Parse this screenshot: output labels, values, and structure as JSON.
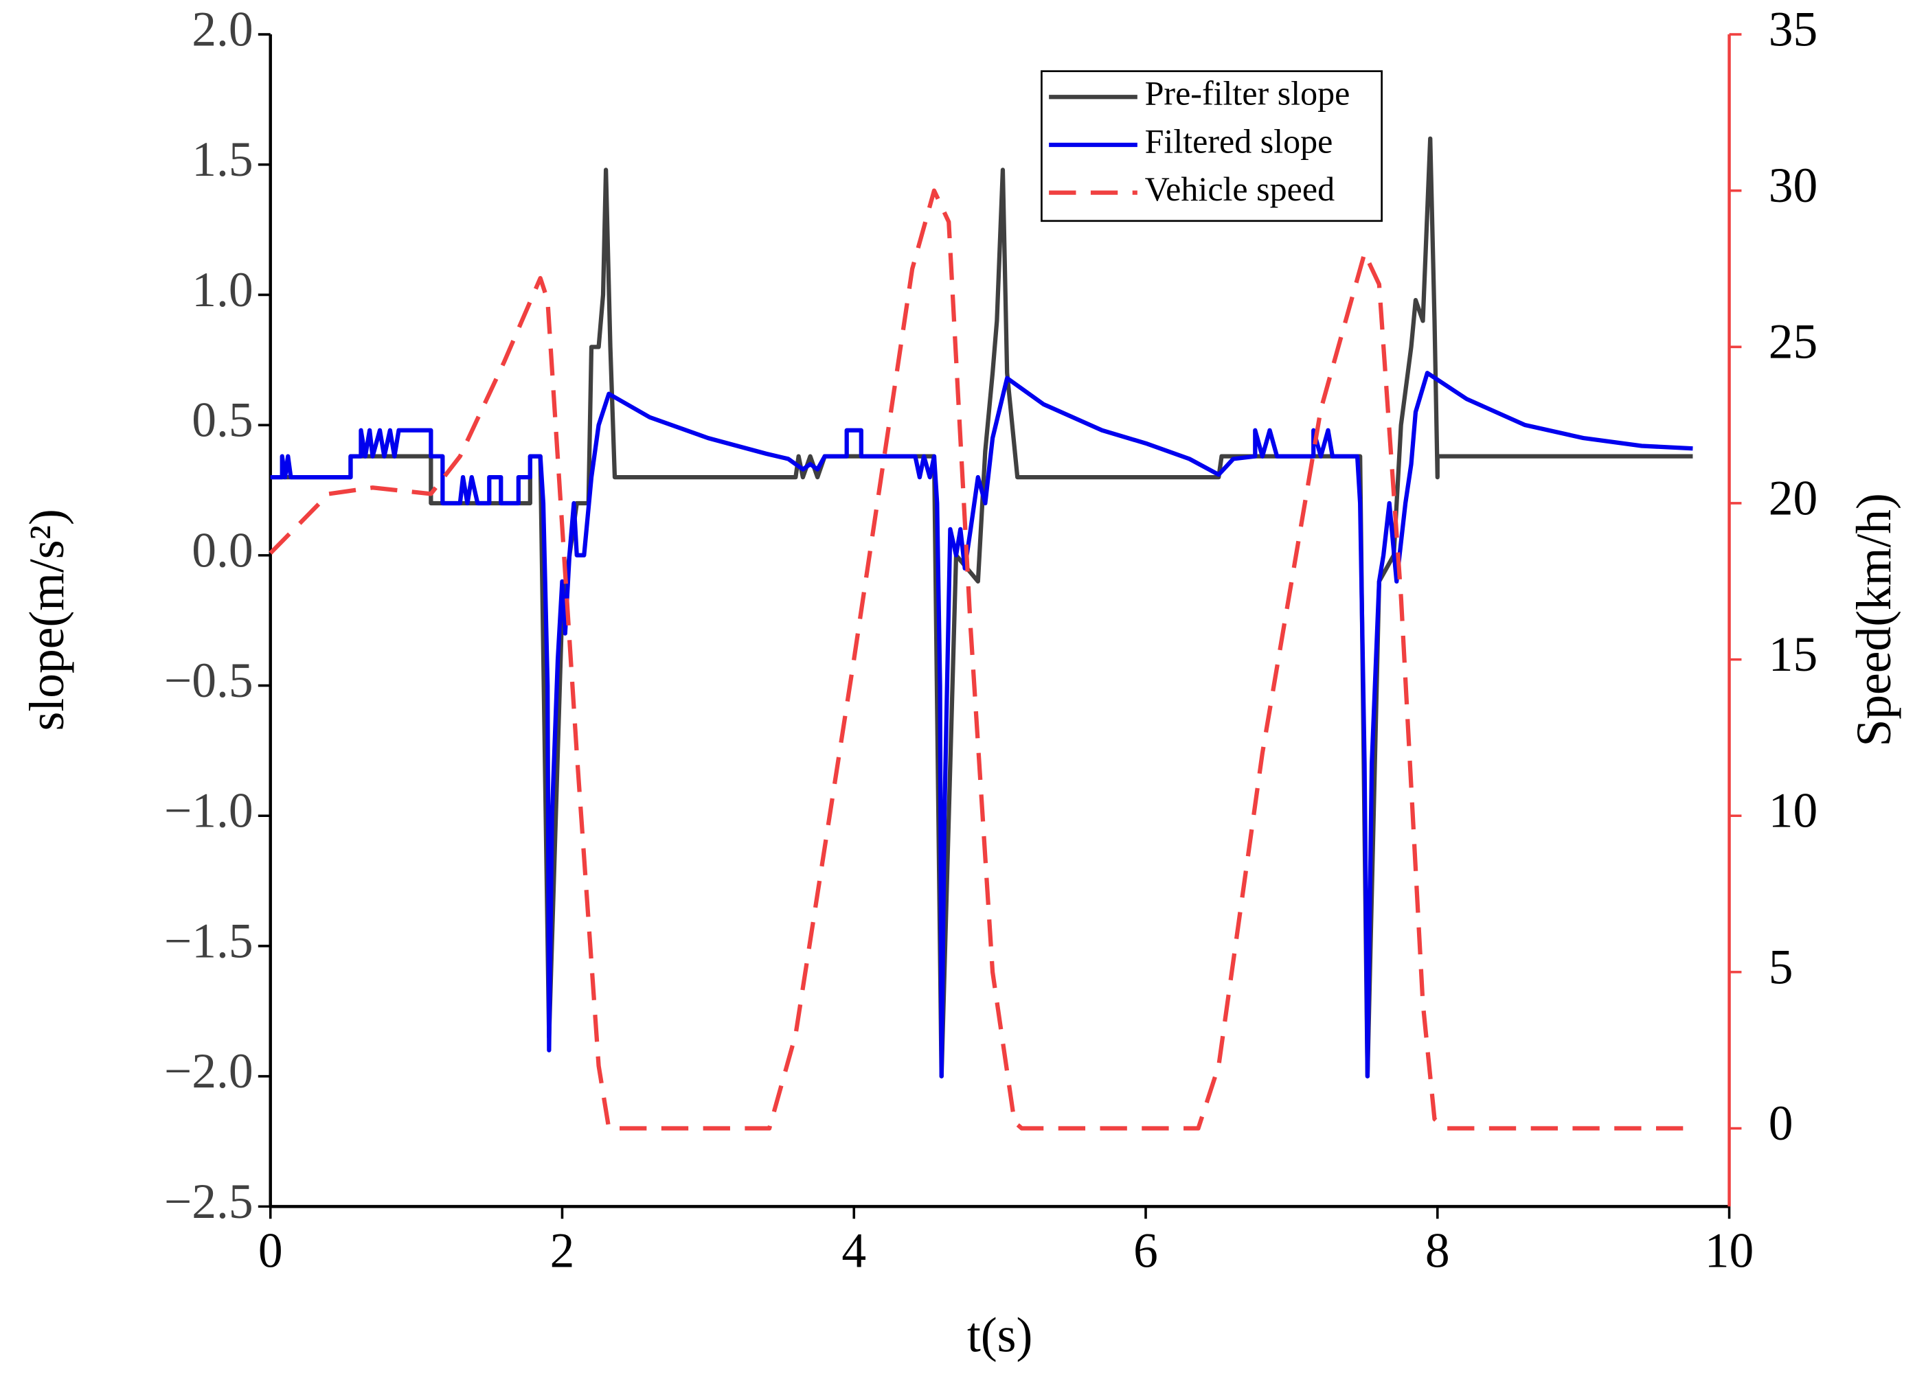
{
  "chart_data": {
    "type": "line",
    "xlabel": "t(s)",
    "ylabel": "slope(m/s²)",
    "y2label": "Speed(km/h)",
    "xlim": [
      0,
      10
    ],
    "xticks": [
      0,
      2,
      4,
      6,
      8,
      10
    ],
    "ylim": [
      -2.5,
      2.0
    ],
    "yticks": [
      {
        "value": -2.5,
        "label": "−2.5"
      },
      {
        "value": -2.0,
        "label": "−2.0"
      },
      {
        "value": -1.5,
        "label": "−1.5"
      },
      {
        "value": -1.0,
        "label": "−1.0"
      },
      {
        "value": -0.5,
        "label": "−0.5"
      },
      {
        "value": 0,
        "label": "0.0"
      },
      {
        "value": 0.5,
        "label": "0.5"
      },
      {
        "value": 1.0,
        "label": "1.0"
      },
      {
        "value": 1.5,
        "label": "1.5"
      },
      {
        "value": 2.0,
        "label": "2.0"
      }
    ],
    "y2lim": [
      -2.5,
      35
    ],
    "y2ticks": [
      0,
      5,
      10,
      15,
      20,
      25,
      30,
      35
    ],
    "y2color": "#f04040",
    "legend": "upper center",
    "series": [
      {
        "name": "Pre-filter slope",
        "color": "#404040",
        "dash": false,
        "x": [
          0,
          0.55,
          0.55,
          1.1,
          1.1,
          1.78,
          1.78,
          1.85,
          1.91,
          2.0,
          2.1,
          2.18,
          2.2,
          2.25,
          2.28,
          2.3,
          2.33,
          2.36,
          3.6,
          3.62,
          3.65,
          3.7,
          3.75,
          3.8,
          4.55,
          4.6,
          4.7,
          4.85,
          4.9,
          4.95,
          4.98,
          5.02,
          5.05,
          5.12,
          6.5,
          6.52,
          7.47,
          7.52,
          7.6,
          7.7,
          7.75,
          7.82,
          7.85,
          7.9,
          7.95,
          7.98,
          8.0,
          8.0,
          9.75
        ],
        "values": [
          0.3,
          0.3,
          0.38,
          0.38,
          0.2,
          0.2,
          0.38,
          0.38,
          -1.85,
          -0.2,
          0.2,
          0.2,
          0.8,
          0.8,
          1.0,
          1.48,
          0.8,
          0.3,
          0.3,
          0.38,
          0.3,
          0.38,
          0.3,
          0.38,
          0.38,
          -2.0,
          0.0,
          -0.1,
          0.4,
          0.7,
          0.9,
          1.48,
          0.7,
          0.3,
          0.3,
          0.38,
          0.38,
          -2.0,
          -0.1,
          0.0,
          0.5,
          0.8,
          0.98,
          0.9,
          1.6,
          0.9,
          0.3,
          0.38,
          0.38
        ]
      },
      {
        "name": "Filtered slope",
        "color": "#0000ee",
        "dash": false,
        "x": [
          0,
          0.08,
          0.08,
          0.1,
          0.12,
          0.14,
          0.55,
          0.55,
          0.62,
          0.62,
          0.65,
          0.68,
          0.7,
          0.75,
          0.78,
          0.82,
          0.85,
          0.88,
          1.1,
          1.1,
          1.18,
          1.18,
          1.3,
          1.32,
          1.35,
          1.38,
          1.42,
          1.5,
          1.5,
          1.58,
          1.58,
          1.7,
          1.7,
          1.78,
          1.78,
          1.85,
          1.87,
          1.9,
          1.91,
          1.93,
          1.97,
          2.0,
          2.02,
          2.05,
          2.08,
          2.1,
          2.15,
          2.2,
          2.25,
          2.32,
          2.6,
          3.0,
          3.4,
          3.55,
          3.65,
          3.7,
          3.75,
          3.8,
          3.95,
          3.95,
          4.05,
          4.05,
          4.42,
          4.45,
          4.48,
          4.52,
          4.55,
          4.57,
          4.59,
          4.6,
          4.62,
          4.66,
          4.7,
          4.73,
          4.76,
          4.8,
          4.85,
          4.9,
          4.95,
          5.05,
          5.3,
          5.7,
          6.0,
          6.3,
          6.5,
          6.6,
          6.75,
          6.75,
          6.8,
          6.85,
          6.9,
          7.15,
          7.15,
          7.2,
          7.25,
          7.28,
          7.45,
          7.47,
          7.5,
          7.52,
          7.55,
          7.6,
          7.63,
          7.67,
          7.72,
          7.78,
          7.82,
          7.85,
          7.93,
          8.2,
          8.6,
          9.0,
          9.4,
          9.75
        ],
        "values": [
          0.3,
          0.3,
          0.38,
          0.3,
          0.38,
          0.3,
          0.3,
          0.38,
          0.38,
          0.48,
          0.38,
          0.48,
          0.38,
          0.48,
          0.38,
          0.48,
          0.38,
          0.48,
          0.48,
          0.38,
          0.38,
          0.2,
          0.2,
          0.3,
          0.2,
          0.3,
          0.2,
          0.2,
          0.3,
          0.3,
          0.2,
          0.2,
          0.3,
          0.3,
          0.38,
          0.38,
          0.2,
          -0.5,
          -1.9,
          -1.0,
          -0.4,
          -0.1,
          -0.3,
          0.0,
          0.2,
          0.0,
          0.0,
          0.3,
          0.5,
          0.62,
          0.53,
          0.45,
          0.39,
          0.37,
          0.33,
          0.35,
          0.33,
          0.38,
          0.38,
          0.48,
          0.48,
          0.38,
          0.38,
          0.3,
          0.38,
          0.3,
          0.38,
          0.2,
          -0.5,
          -2.0,
          -1.0,
          0.1,
          0.0,
          0.1,
          -0.05,
          0.1,
          0.3,
          0.2,
          0.45,
          0.68,
          0.58,
          0.48,
          0.43,
          0.37,
          0.31,
          0.37,
          0.38,
          0.48,
          0.38,
          0.48,
          0.38,
          0.38,
          0.48,
          0.38,
          0.48,
          0.38,
          0.38,
          0.2,
          -0.8,
          -2.0,
          -0.8,
          -0.1,
          0.0,
          0.2,
          -0.1,
          0.2,
          0.35,
          0.55,
          0.7,
          0.6,
          0.5,
          0.45,
          0.42,
          0.41
        ]
      },
      {
        "name": "Vehicle speed",
        "color": "#f04040",
        "dash": true,
        "axis": "y2",
        "x": [
          0,
          0.4,
          0.7,
          1.1,
          1.3,
          1.6,
          1.85,
          1.9,
          2.1,
          2.25,
          2.32,
          3.42,
          3.6,
          4.0,
          4.4,
          4.55,
          4.65,
          4.8,
          4.95,
          5.1,
          5.15,
          6.36,
          6.5,
          6.8,
          7.2,
          7.5,
          7.6,
          7.75,
          7.9,
          7.98,
          8.05,
          9.75
        ],
        "values": [
          18.4,
          20.3,
          20.5,
          20.3,
          21.5,
          24.5,
          27.2,
          26.5,
          12,
          2,
          0,
          0,
          3,
          15,
          27.5,
          30,
          29,
          16,
          5,
          0.2,
          0,
          0,
          2,
          12,
          23,
          28,
          27,
          17,
          4,
          0.3,
          0,
          0
        ]
      }
    ]
  }
}
